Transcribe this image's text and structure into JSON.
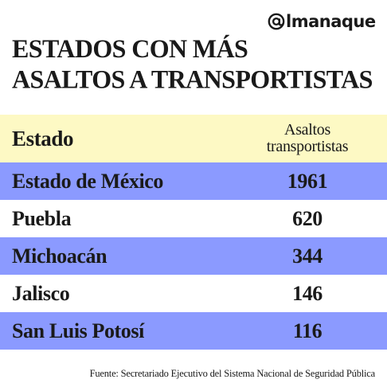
{
  "logo": {
    "text": "lmanaque",
    "icon": "at-sign-icon"
  },
  "title": {
    "line1": "ESTADOS CON MÁS",
    "line2": "ASALTOS A TRANSPORTISTAS"
  },
  "footer": {
    "source": "Fuente: Secretariado Ejecutivo del Sistema Nacional de Seguridad Pública"
  },
  "chart_data": {
    "type": "table",
    "columns": [
      "Estado",
      "Asaltos transportistas"
    ],
    "header": {
      "state": "Estado",
      "value_line1": "Asaltos",
      "value_line2": "transportistas"
    },
    "rows": [
      {
        "state": "Estado de México",
        "value": "1961"
      },
      {
        "state": "Puebla",
        "value": "620"
      },
      {
        "state": "Michoacán",
        "value": "344"
      },
      {
        "state": "Jalisco",
        "value": "146"
      },
      {
        "state": "San Luis Potosí",
        "value": "116"
      }
    ],
    "colors": {
      "header_bg": "#fdf9c4",
      "odd_row_bg": "#8b9aff",
      "even_row_bg": "#ffffff"
    }
  }
}
